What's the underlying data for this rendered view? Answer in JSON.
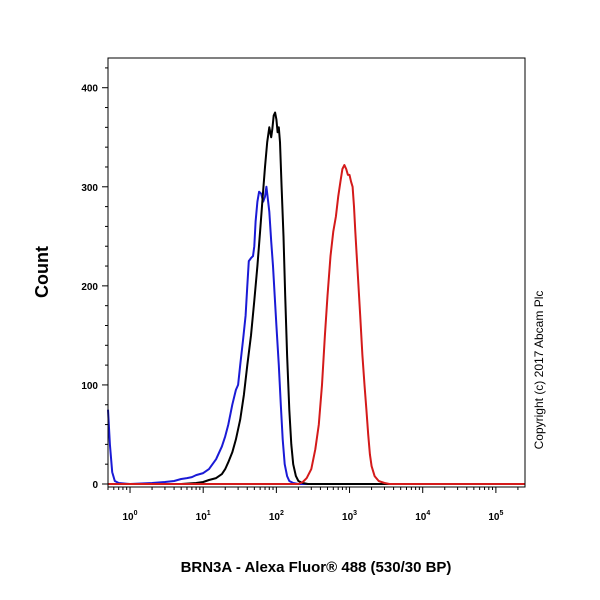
{
  "chart_data": {
    "type": "line",
    "title": "",
    "xlabel": "BRN3A - Alexa Fluor® 488 (530/30 BP)",
    "ylabel": "Count",
    "x_scale": "log",
    "xlim": [
      0.5,
      250000
    ],
    "ylim": [
      0,
      430
    ],
    "grid": false,
    "x_ticks": [
      {
        "base": "10",
        "exp": "0",
        "value": 1
      },
      {
        "base": "10",
        "exp": "1",
        "value": 10
      },
      {
        "base": "10",
        "exp": "2",
        "value": 100
      },
      {
        "base": "10",
        "exp": "3",
        "value": 1000
      },
      {
        "base": "10",
        "exp": "4",
        "value": 10000
      },
      {
        "base": "10",
        "exp": "5",
        "value": 100000
      }
    ],
    "y_ticks": [
      {
        "label": "0",
        "value": 0
      },
      {
        "label": "100",
        "value": 100
      },
      {
        "label": "200",
        "value": 200
      },
      {
        "label": "300",
        "value": 300
      },
      {
        "label": "400",
        "value": 400
      }
    ],
    "series": [
      {
        "color": "#1a1ad6",
        "points": [
          [
            0.5,
            75
          ],
          [
            0.53,
            40
          ],
          [
            0.57,
            12
          ],
          [
            0.62,
            3
          ],
          [
            0.7,
            1
          ],
          [
            1,
            0
          ],
          [
            2,
            1
          ],
          [
            3,
            2
          ],
          [
            4,
            3
          ],
          [
            5,
            5
          ],
          [
            6,
            6
          ],
          [
            7,
            7
          ],
          [
            8,
            9
          ],
          [
            10,
            11
          ],
          [
            12,
            15
          ],
          [
            15,
            25
          ],
          [
            18,
            38
          ],
          [
            20,
            48
          ],
          [
            22,
            60
          ],
          [
            25,
            80
          ],
          [
            28,
            95
          ],
          [
            30,
            100
          ],
          [
            32,
            120
          ],
          [
            35,
            145
          ],
          [
            38,
            170
          ],
          [
            40,
            200
          ],
          [
            42,
            225
          ],
          [
            45,
            228
          ],
          [
            48,
            230
          ],
          [
            50,
            240
          ],
          [
            52,
            265
          ],
          [
            55,
            285
          ],
          [
            58,
            295
          ],
          [
            62,
            293
          ],
          [
            66,
            285
          ],
          [
            70,
            290
          ],
          [
            73,
            300
          ],
          [
            76,
            290
          ],
          [
            80,
            275
          ],
          [
            85,
            245
          ],
          [
            90,
            220
          ],
          [
            95,
            190
          ],
          [
            100,
            160
          ],
          [
            108,
            120
          ],
          [
            115,
            80
          ],
          [
            122,
            45
          ],
          [
            130,
            20
          ],
          [
            140,
            8
          ],
          [
            150,
            3
          ],
          [
            170,
            1
          ],
          [
            200,
            0
          ],
          [
            250000,
            0
          ]
        ]
      },
      {
        "color": "#000000",
        "points": [
          [
            0.5,
            0
          ],
          [
            2,
            0
          ],
          [
            5,
            0
          ],
          [
            8,
            1
          ],
          [
            10,
            2
          ],
          [
            12,
            4
          ],
          [
            15,
            6
          ],
          [
            18,
            10
          ],
          [
            20,
            15
          ],
          [
            22,
            22
          ],
          [
            25,
            32
          ],
          [
            28,
            45
          ],
          [
            32,
            65
          ],
          [
            36,
            90
          ],
          [
            40,
            120
          ],
          [
            45,
            150
          ],
          [
            50,
            185
          ],
          [
            55,
            220
          ],
          [
            60,
            255
          ],
          [
            65,
            290
          ],
          [
            70,
            320
          ],
          [
            75,
            345
          ],
          [
            80,
            360
          ],
          [
            85,
            350
          ],
          [
            88,
            358
          ],
          [
            92,
            372
          ],
          [
            96,
            375
          ],
          [
            100,
            368
          ],
          [
            104,
            355
          ],
          [
            108,
            360
          ],
          [
            112,
            345
          ],
          [
            118,
            300
          ],
          [
            125,
            250
          ],
          [
            132,
            190
          ],
          [
            140,
            130
          ],
          [
            150,
            75
          ],
          [
            160,
            40
          ],
          [
            170,
            20
          ],
          [
            185,
            8
          ],
          [
            200,
            3
          ],
          [
            230,
            1
          ],
          [
            270,
            0
          ],
          [
            250000,
            0
          ]
        ]
      },
      {
        "color": "#d41a1a",
        "points": [
          [
            0.5,
            0
          ],
          [
            200,
            0
          ],
          [
            230,
            2
          ],
          [
            260,
            6
          ],
          [
            300,
            15
          ],
          [
            340,
            35
          ],
          [
            380,
            60
          ],
          [
            420,
            100
          ],
          [
            460,
            150
          ],
          [
            500,
            190
          ],
          [
            550,
            230
          ],
          [
            600,
            255
          ],
          [
            650,
            270
          ],
          [
            700,
            290
          ],
          [
            750,
            305
          ],
          [
            800,
            318
          ],
          [
            850,
            322
          ],
          [
            900,
            318
          ],
          [
            950,
            312
          ],
          [
            1000,
            312
          ],
          [
            1050,
            305
          ],
          [
            1100,
            300
          ],
          [
            1150,
            280
          ],
          [
            1200,
            255
          ],
          [
            1300,
            210
          ],
          [
            1400,
            170
          ],
          [
            1500,
            130
          ],
          [
            1600,
            100
          ],
          [
            1700,
            75
          ],
          [
            1800,
            50
          ],
          [
            1900,
            30
          ],
          [
            2000,
            18
          ],
          [
            2200,
            8
          ],
          [
            2500,
            3
          ],
          [
            3000,
            1
          ],
          [
            3500,
            0
          ],
          [
            250000,
            0
          ]
        ]
      }
    ]
  },
  "copyright": "Copyright (c) 2017 Abcam Plc"
}
